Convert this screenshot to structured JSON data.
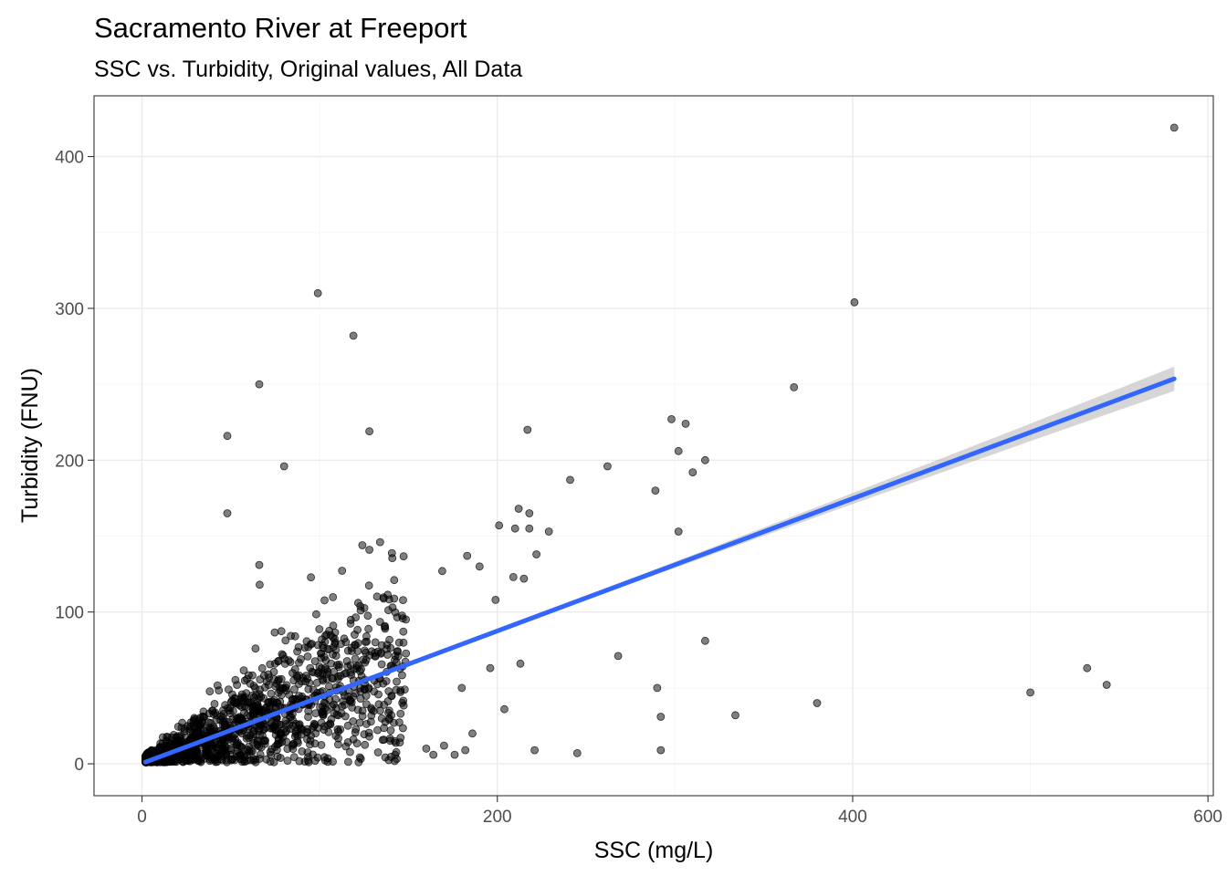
{
  "chart_data": {
    "type": "scatter",
    "title": "Sacramento River at Freeport",
    "subtitle": "SSC vs. Turbidity, Original values, All Data",
    "xlabel": "SSC (mg/L)",
    "ylabel": "Turbidity (FNU)",
    "xlim": [
      -27,
      603
    ],
    "ylim": [
      -21,
      440
    ],
    "x_ticks": [
      0,
      200,
      400,
      600
    ],
    "y_ticks": [
      0,
      100,
      200,
      300,
      400
    ],
    "grid": true,
    "legend": "none",
    "colors": {
      "points": "#000000",
      "fit_line": "#3366ff",
      "confidence_band": "#999999"
    },
    "fit": {
      "method": "linear",
      "intercept": 0.3,
      "slope": 0.436,
      "x_range": [
        2,
        581
      ],
      "se_band": true
    },
    "outlier_points": [
      [
        581,
        419
      ],
      [
        401,
        304
      ],
      [
        99,
        310
      ],
      [
        119,
        282
      ],
      [
        66,
        250
      ],
      [
        367,
        248
      ],
      [
        298,
        227
      ],
      [
        306,
        224
      ],
      [
        217,
        220
      ],
      [
        128,
        219
      ],
      [
        48,
        216
      ],
      [
        302,
        206
      ],
      [
        317,
        200
      ],
      [
        80,
        196
      ],
      [
        262,
        196
      ],
      [
        310,
        192
      ],
      [
        241,
        187
      ],
      [
        289,
        180
      ],
      [
        48,
        165
      ],
      [
        212,
        168
      ],
      [
        218,
        165
      ],
      [
        201,
        157
      ],
      [
        210,
        155
      ],
      [
        218,
        155
      ],
      [
        229,
        153
      ],
      [
        302,
        153
      ],
      [
        124,
        144
      ],
      [
        128,
        141
      ],
      [
        134,
        146
      ],
      [
        66,
        131
      ],
      [
        183,
        137
      ],
      [
        190,
        130
      ],
      [
        169,
        127
      ],
      [
        222,
        138
      ],
      [
        209,
        123
      ],
      [
        215,
        122
      ],
      [
        199,
        108
      ],
      [
        317,
        81
      ],
      [
        268,
        71
      ],
      [
        213,
        66
      ],
      [
        196,
        63
      ],
      [
        290,
        50
      ],
      [
        204,
        36
      ],
      [
        292,
        31
      ],
      [
        334,
        32
      ],
      [
        380,
        40
      ],
      [
        500,
        47
      ],
      [
        532,
        63
      ],
      [
        543,
        52
      ],
      [
        292,
        9
      ],
      [
        221,
        9
      ],
      [
        245,
        7
      ],
      [
        160,
        10
      ],
      [
        164,
        6
      ],
      [
        182,
        9
      ],
      [
        170,
        12
      ],
      [
        176,
        6
      ],
      [
        180,
        50
      ],
      [
        186,
        20
      ],
      [
        140,
        22
      ]
    ],
    "dense_cluster": {
      "x_range": [
        2,
        190
      ],
      "seed": 7,
      "point_count": 1500
    }
  }
}
